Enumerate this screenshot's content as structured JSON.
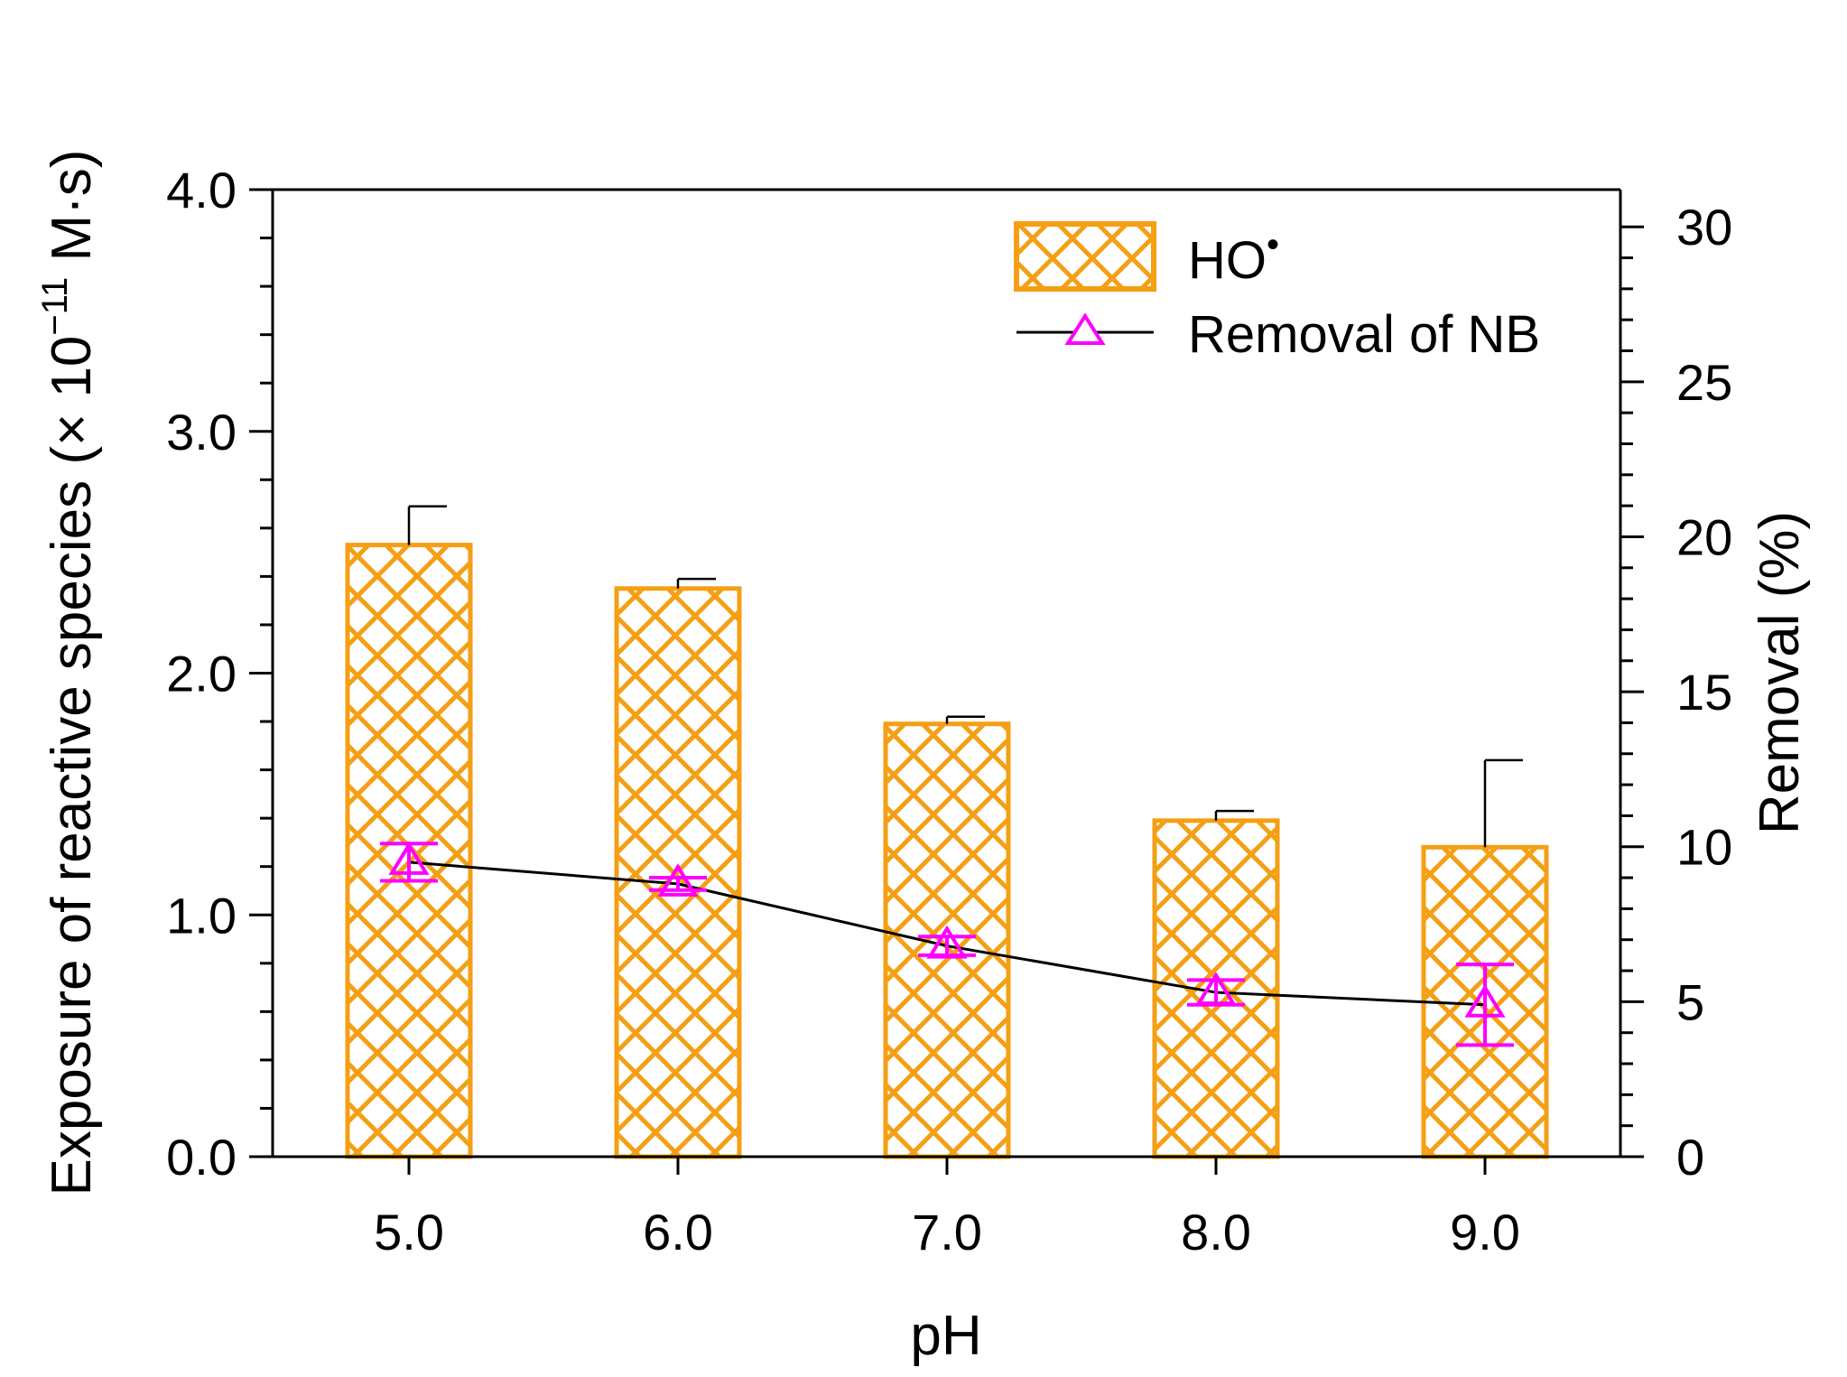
{
  "chart_data": {
    "type": "bar",
    "title": "",
    "xlabel": "pH",
    "ylabel": "Exposure of reactive species (× 10",
    "ylabel_exponent": "−11",
    "ylabel_unit": " M·s)",
    "y2label": "Removal (%)",
    "categories": [
      "5.0",
      "6.0",
      "7.0",
      "8.0",
      "9.0"
    ],
    "ylim": [
      0,
      4.0
    ],
    "y2lim": [
      0,
      31.2
    ],
    "yticks": [
      "0.0",
      "1.0",
      "2.0",
      "3.0",
      "4.0"
    ],
    "y2ticks": [
      "0",
      "5",
      "10",
      "15",
      "20",
      "25",
      "30"
    ],
    "grid": false,
    "legend_position": "top-right",
    "series": [
      {
        "name": "HO",
        "name_superscript": "•",
        "kind": "bar",
        "axis": "left",
        "pattern": "crosshatch",
        "color": "#f59f14",
        "values": [
          2.53,
          2.35,
          1.79,
          1.39,
          1.28
        ],
        "errors": [
          0.16,
          0.04,
          0.03,
          0.04,
          0.36
        ]
      },
      {
        "name": "Removal of NB",
        "kind": "line",
        "axis": "right",
        "marker": "triangle",
        "line_color": "#000000",
        "marker_color": "#ff00ff",
        "values": [
          9.5,
          8.8,
          6.8,
          5.3,
          4.9
        ],
        "errors": [
          0.6,
          0.2,
          0.3,
          0.4,
          1.3
        ]
      }
    ]
  }
}
